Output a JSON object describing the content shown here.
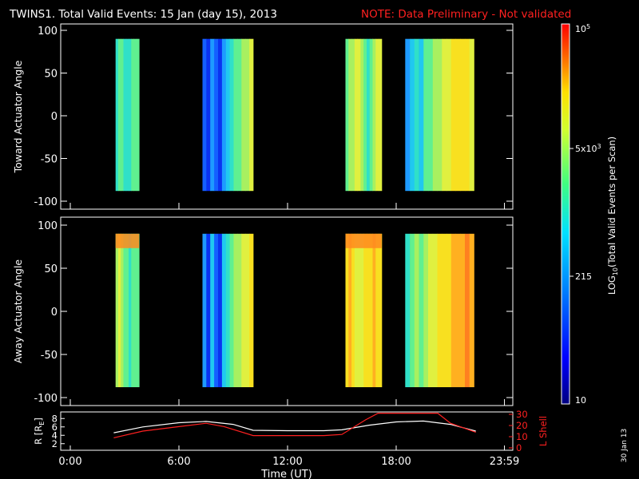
{
  "header": {
    "title": "TWINS1. Total Valid Events: 15 Jan (day  15), 2013",
    "note": "NOTE: Data Preliminary - Not validated"
  },
  "panels": {
    "toward_ylabel": "Toward Actuator Angle",
    "away_ylabel": "Away Actuator Angle",
    "angle_ticks": [
      "100",
      "50",
      "0",
      "-50",
      "-100"
    ]
  },
  "orbit_panel": {
    "r_label": "R [R",
    "r_sub": "E",
    "r_close": "]",
    "r_ticks": [
      "8",
      "6",
      "4",
      "2"
    ],
    "l_label": "L Shell",
    "l_ticks": [
      "30",
      "20",
      "10",
      "0"
    ]
  },
  "xaxis": {
    "label": "Time (UT)",
    "ticks": [
      "0:00",
      "6:00",
      "12:00",
      "18:00",
      "23:59"
    ]
  },
  "colorbar": {
    "label_pre": "LOG",
    "label_sub": "10",
    "label_post": "(Total Valid Events per Scan)",
    "top_base": "10",
    "top_exp": "5",
    "mid_mant": "5x",
    "mid_base": "10",
    "mid_exp": "3",
    "low_label": "215",
    "bottom_label": "10"
  },
  "footer": {
    "date": "30 Jan 13"
  },
  "chart_data": [
    {
      "type": "heatmap",
      "title": "TWINS1. Total Valid Events: 15 Jan (day  15), 2013",
      "ylabel": "Toward Actuator Angle",
      "xlabel": "",
      "xlim": [
        0,
        24
      ],
      "ylim": [
        -110,
        110
      ],
      "y_extent": [
        -88,
        90
      ],
      "colorscale": "log10",
      "clim": [
        10,
        100000
      ],
      "blocks_hours": [
        {
          "start": 2.5,
          "end": 3.8,
          "level": "~1000-3000, cyan to yellow-green"
        },
        {
          "start": 7.3,
          "end": 10.1,
          "level": "~300-5000, blue to yellow, with gaps"
        },
        {
          "start": 15.2,
          "end": 17.2,
          "level": "~1000-5000, green to yellow, with gap"
        },
        {
          "start": 18.5,
          "end": 22.3,
          "level": "~300-8000, blue to yellow"
        }
      ]
    },
    {
      "type": "heatmap",
      "ylabel": "Away Actuator Angle",
      "xlim": [
        0,
        24
      ],
      "ylim": [
        -110,
        110
      ],
      "y_extent": [
        -88,
        90
      ],
      "colorscale": "log10",
      "clim": [
        10,
        100000
      ],
      "blocks_hours": [
        {
          "start": 2.5,
          "end": 3.8,
          "level": "~1000-20000, cyan to orange at top"
        },
        {
          "start": 7.3,
          "end": 10.1,
          "level": "~300-10000, blue to yellow, with gaps"
        },
        {
          "start": 15.2,
          "end": 17.2,
          "level": "~3000-20000, yellow to orange, with gap"
        },
        {
          "start": 18.5,
          "end": 22.3,
          "level": "~500-20000, cyan to orange"
        }
      ]
    },
    {
      "type": "line",
      "xlabel": "Time (UT)",
      "xlim": [
        0,
        24
      ],
      "series": [
        {
          "name": "R [RE]",
          "color": "#ffffff",
          "axis": "left",
          "ylim": [
            1,
            9
          ],
          "x": [
            2.4,
            4,
            6,
            7.5,
            9,
            10.1,
            12,
            14,
            15,
            16.5,
            18,
            19.5,
            21,
            22.4
          ],
          "y": [
            4.6,
            6.0,
            7.0,
            7.3,
            6.6,
            5.2,
            5.1,
            5.1,
            5.3,
            6.4,
            7.2,
            7.4,
            6.6,
            5.0
          ]
        },
        {
          "name": "L Shell",
          "color": "#ff2020",
          "axis": "right",
          "ylim": [
            0,
            30
          ],
          "x": [
            2.4,
            4,
            6,
            7.5,
            8.5,
            10.1,
            12,
            14,
            15,
            16.3,
            17.0,
            20.3,
            21,
            22.4
          ],
          "y": [
            9,
            15,
            19,
            22,
            19,
            11,
            11,
            11,
            12,
            25,
            31,
            31,
            22,
            14
          ]
        }
      ]
    }
  ],
  "colors": {
    "background": "#000000",
    "axis": "#ffffff",
    "note": "#ff2020",
    "lshell": "#ff2020"
  }
}
